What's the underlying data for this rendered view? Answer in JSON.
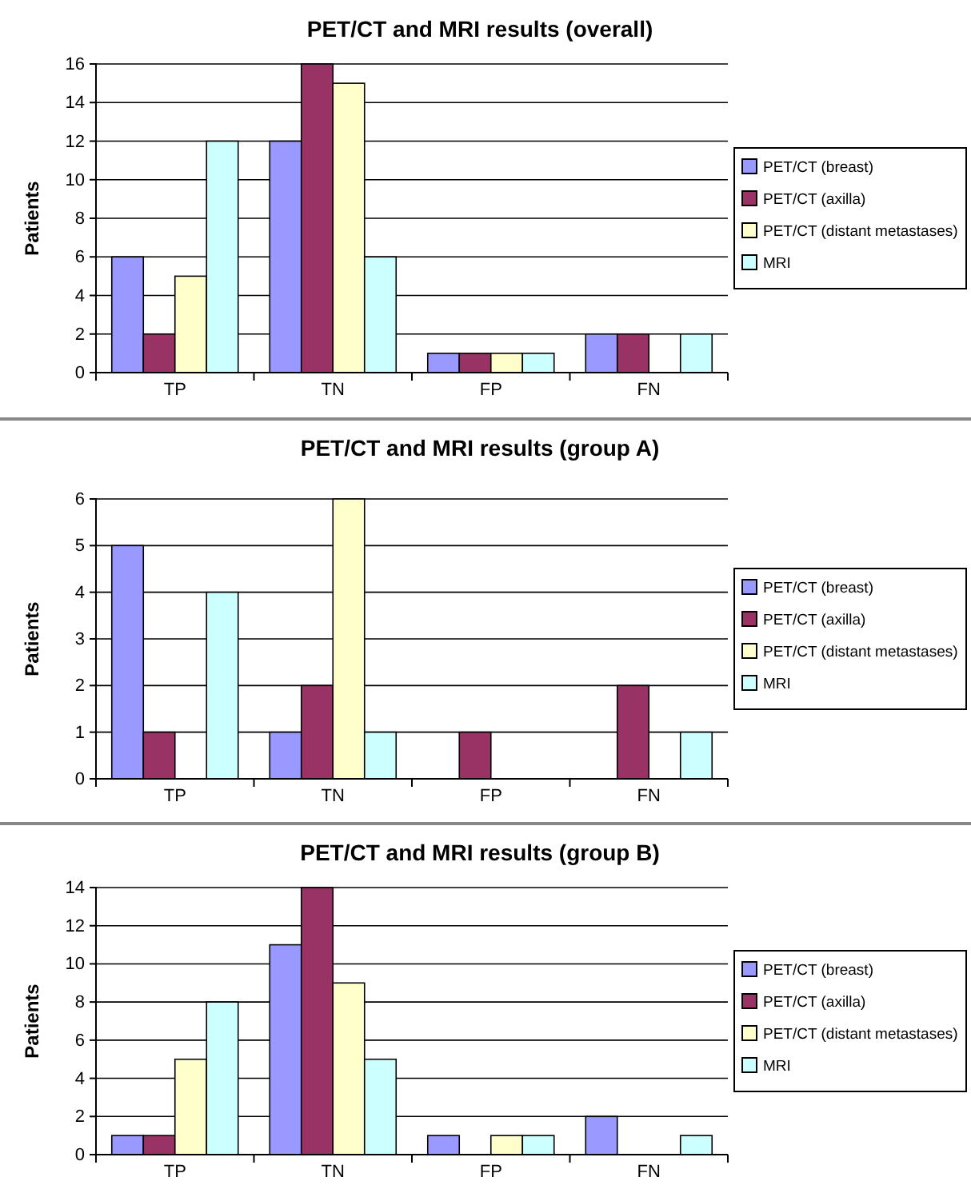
{
  "chart_data": [
    {
      "type": "bar",
      "title": "PET/CT and MRI results (overall)",
      "ylabel": "Patients",
      "categories": [
        "TP",
        "TN",
        "FP",
        "FN"
      ],
      "ylim": [
        0,
        16
      ],
      "yticks": [
        0,
        2,
        4,
        6,
        8,
        10,
        12,
        14,
        16
      ],
      "grid": "y",
      "legend": "right",
      "series": [
        {
          "name": "PET/CT (breast)",
          "color": "#9999ff",
          "values": [
            6,
            12,
            1,
            2
          ]
        },
        {
          "name": "PET/CT (axilla)",
          "color": "#993366",
          "values": [
            2,
            16,
            1,
            2
          ]
        },
        {
          "name": "PET/CT (distant metastases)",
          "color": "#ffffcc",
          "values": [
            5,
            15,
            1,
            0
          ]
        },
        {
          "name": "MRI",
          "color": "#ccffff",
          "values": [
            12,
            6,
            1,
            2
          ]
        }
      ]
    },
    {
      "type": "bar",
      "title": "PET/CT and MRI results (group A)",
      "ylabel": "Patients",
      "categories": [
        "TP",
        "TN",
        "FP",
        "FN"
      ],
      "ylim": [
        0,
        6
      ],
      "yticks": [
        0,
        1,
        2,
        3,
        4,
        5,
        6
      ],
      "grid": "y",
      "legend": "right",
      "series": [
        {
          "name": "PET/CT (breast)",
          "color": "#9999ff",
          "values": [
            5,
            1,
            0,
            0
          ]
        },
        {
          "name": "PET/CT (axilla)",
          "color": "#993366",
          "values": [
            1,
            2,
            1,
            2
          ]
        },
        {
          "name": "PET/CT (distant metastases)",
          "color": "#ffffcc",
          "values": [
            0,
            6,
            0,
            0
          ]
        },
        {
          "name": "MRI",
          "color": "#ccffff",
          "values": [
            4,
            1,
            0,
            1
          ]
        }
      ]
    },
    {
      "type": "bar",
      "title": "PET/CT and MRI results (group B)",
      "ylabel": "Patients",
      "categories": [
        "TP",
        "TN",
        "FP",
        "FN"
      ],
      "ylim": [
        0,
        14
      ],
      "yticks": [
        0,
        2,
        4,
        6,
        8,
        10,
        12,
        14
      ],
      "grid": "y",
      "legend": "right",
      "series": [
        {
          "name": "PET/CT (breast)",
          "color": "#9999ff",
          "values": [
            1,
            11,
            1,
            2
          ]
        },
        {
          "name": "PET/CT (axilla)",
          "color": "#993366",
          "values": [
            1,
            14,
            0,
            0
          ]
        },
        {
          "name": "PET/CT (distant metastases)",
          "color": "#ffffcc",
          "values": [
            5,
            9,
            1,
            0
          ]
        },
        {
          "name": "MRI",
          "color": "#ccffff",
          "values": [
            8,
            5,
            1,
            1
          ]
        }
      ]
    }
  ]
}
